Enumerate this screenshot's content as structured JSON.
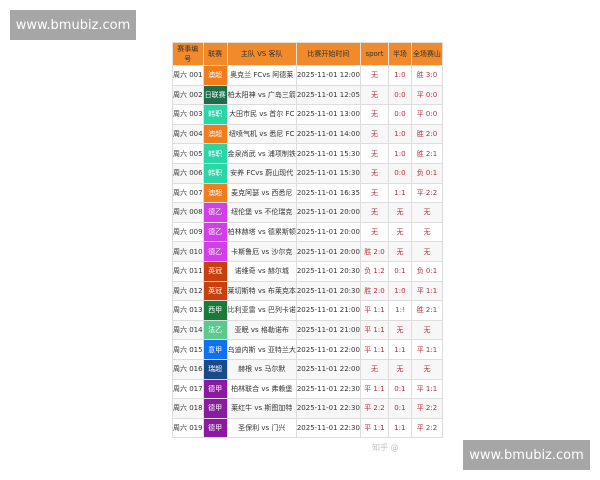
{
  "watermark_banners": [
    "www.bmubiz.com",
    "www.bmubiz.com"
  ],
  "headers": [
    "赛事编号",
    "联赛",
    "主队 VS 客队",
    "比赛开始时间",
    "sport",
    "半场",
    "全场赛山"
  ],
  "rows": [
    [
      "周六 001",
      "澳超",
      "#f07c1c",
      "奥克兰 FCvs 阿德莱",
      "2025-11-01 12:00",
      "无",
      "1:0",
      "胜 3:0"
    ],
    [
      "周六 002",
      "日联赛",
      "#1a6e4a",
      "柏太阳神 vs 广岛三箭",
      "2025-11-01 12:05",
      "无",
      "0:0",
      "平 0:0"
    ],
    [
      "周六 003",
      "韩职",
      "#2bd6a6",
      "大田市民 vs 首尔 FC",
      "2025-11-01 13:00",
      "无",
      "0:0",
      "平 0:0"
    ],
    [
      "周六 004",
      "澳超",
      "#f07c1c",
      "纽喷气机 vs 悉尼 FC",
      "2025-11-01 14:00",
      "无",
      "1:0",
      "胜 2:0"
    ],
    [
      "周六 005",
      "韩职",
      "#2bd6a6",
      "金泉尚武 vs 浦项制铁",
      "2025-11-01 15:30",
      "无",
      "1:0",
      "胜 2:1"
    ],
    [
      "周六 006",
      "韩职",
      "#2bd6a6",
      "安养 FCvs 蔚山现代",
      "2025-11-01 15:30",
      "无",
      "0:0",
      "负 0:1"
    ],
    [
      "周六 007",
      "澳超",
      "#f07c1c",
      "麦克阿瑟 vs 西悉尼",
      "2025-11-01 16:35",
      "无",
      "1:1",
      "平 2:2"
    ],
    [
      "周六 008",
      "德乙",
      "#d23ee8",
      "纽伦堡 vs 不伦瑞克",
      "2025-11-01 20:00",
      "无",
      "无",
      "无"
    ],
    [
      "周六 009",
      "德乙",
      "#d23ee8",
      "柏林赫塔 vs 德累斯顿",
      "2025-11-01 20:00",
      "无",
      "无",
      "无"
    ],
    [
      "周六 010",
      "德乙",
      "#d23ee8",
      "卡斯鲁厄 vs 沙尔克",
      "2025-11-01 20:00",
      "胜 2:0",
      "无",
      "无"
    ],
    [
      "周六 011",
      "英冠",
      "#c8400e",
      "诺维奇 vs 赫尔城",
      "2025-11-01 20:30",
      "负 1:2",
      "0:1",
      "负 0:1"
    ],
    [
      "周六 012",
      "英冠",
      "#c8400e",
      "莱切斯特 vs 布莱克本",
      "2025-11-01 20:30",
      "胜 2:0",
      "1:0",
      "平 1:1"
    ],
    [
      "周六 013",
      "西甲",
      "#1a7a3a",
      "比利亚雷 vs 巴列卡诺",
      "2025-11-01 21:00",
      "平 1:1",
      "1:!",
      "胜 2:1"
    ],
    [
      "周六 014",
      "法乙",
      "#5cc98f",
      "亚眠 vs 格勒诺布",
      "2025-11-01 21:00",
      "平 1:1",
      "无",
      "无"
    ],
    [
      "周六 015",
      "意甲",
      "#1070f0",
      "乌迪内斯 vs 亚特兰大",
      "2025-11-01 22:00",
      "平 1:1",
      "1:1",
      "平 1:1"
    ],
    [
      "周六 016",
      "瑞超",
      "#1a4a8a",
      "赫根 vs 马尔默",
      "2025-11-01 22:00",
      "无",
      "无",
      "无"
    ],
    [
      "周六 017",
      "德甲",
      "#8a1aa0",
      "柏林联合 vs 弗赖堡",
      "2025-11-01 22:30",
      "平 1:1",
      "0:1",
      "平 1:1"
    ],
    [
      "周六 018",
      "德甲",
      "#8a1aa0",
      "莱红牛 vs 斯图加特",
      "2025-11-01 22:30",
      "平 2:2",
      "0:1",
      "平 2:2"
    ],
    [
      "周六 019",
      "德甲",
      "#8a1aa0",
      "圣保利 vs 门兴",
      "2025-11-01 22:30",
      "平 1:1",
      "1:1",
      "平 2:2"
    ]
  ],
  "watermark_text": "知乎 @"
}
